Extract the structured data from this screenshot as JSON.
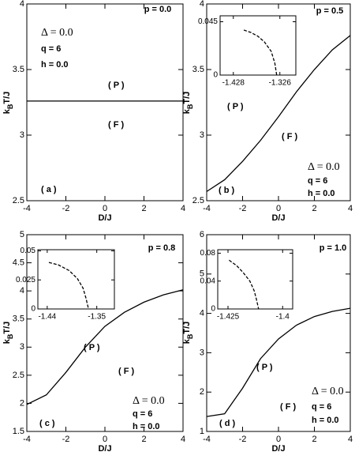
{
  "chart_data": [
    {
      "type": "line",
      "xlabel": "D/J",
      "ylabel": [
        "k",
        "B",
        "T/J"
      ],
      "xlim": [
        -4,
        4
      ],
      "xticks": [
        -4,
        -2,
        0,
        2,
        4
      ],
      "ylim": [
        2.5,
        4
      ],
      "yticks": [
        2.5,
        3,
        3.5,
        4
      ],
      "x": [
        -4,
        -3,
        -2,
        -1,
        0,
        1,
        2,
        3,
        4
      ],
      "values": [
        3.26,
        3.26,
        3.26,
        3.26,
        3.26,
        3.26,
        3.26,
        3.26,
        3.26
      ],
      "color": "#000000",
      "p_label": "p = 0.0",
      "delta_label": "Δ = 0.0",
      "q_label": "q = 6",
      "h_label": "h = 0.0",
      "phase_p": "( P )",
      "phase_f": "( F )",
      "panel_label": "( a )"
    },
    {
      "type": "line",
      "xlabel": "D/J",
      "ylabel": [
        "k",
        "B",
        "T/J"
      ],
      "xlim": [
        -4,
        4
      ],
      "xticks": [
        -4,
        -2,
        0,
        2,
        4
      ],
      "ylim": [
        2.5,
        4
      ],
      "yticks": [
        2.5,
        3,
        3.5,
        4
      ],
      "x": [
        -4,
        -3,
        -2,
        -1,
        0,
        1,
        2,
        3,
        4
      ],
      "values": [
        2.57,
        2.66,
        2.8,
        2.96,
        3.14,
        3.33,
        3.5,
        3.65,
        3.76
      ],
      "color": "#000000",
      "p_label": "p = 0.5",
      "delta_label": "Δ = 0.0",
      "q_label": "q = 6",
      "h_label": "h = 0.0",
      "phase_p": "( P )",
      "phase_f": "( F )",
      "panel_label": "( b )",
      "inset": {
        "xlim": [
          -1.457,
          -1.291
        ],
        "xticks": [
          -1.428,
          -1.326
        ],
        "ylim": [
          0,
          0.05
        ],
        "yticks": [
          0,
          0.045
        ],
        "x": [
          -1.405,
          -1.39,
          -1.375,
          -1.36,
          -1.345,
          -1.337,
          -1.333
        ],
        "values": [
          0.038,
          0.036,
          0.033,
          0.028,
          0.02,
          0.01,
          0
        ],
        "dashed": true
      }
    },
    {
      "type": "line",
      "xlabel": "D/J",
      "ylabel": [
        "k",
        "B",
        "T/J"
      ],
      "xlim": [
        -4,
        4
      ],
      "xticks": [
        -4,
        -2,
        0,
        2,
        4
      ],
      "ylim": [
        1.5,
        5
      ],
      "yticks": [
        1.5,
        2,
        2.5,
        3,
        3.5,
        4,
        4.5,
        5
      ],
      "x": [
        -4,
        -3,
        -2,
        -1,
        0,
        1,
        2,
        3,
        4
      ],
      "values": [
        1.98,
        2.15,
        2.55,
        3.0,
        3.37,
        3.62,
        3.8,
        3.93,
        4.02
      ],
      "color": "#000000",
      "p_label": "p = 0.8",
      "delta_label": "Δ = 0.0",
      "q_label": "q = 6",
      "h_label": "h = 0.0",
      "phase_p": "( P )",
      "phase_f": "( F )",
      "panel_label": "( c )",
      "inset": {
        "xlim": [
          -1.457,
          -1.318
        ],
        "xticks": [
          -1.44,
          -1.35
        ],
        "ylim": [
          0,
          0.051
        ],
        "yticks": [
          0,
          0.025,
          0.05
        ],
        "x": [
          -1.437,
          -1.42,
          -1.4,
          -1.385,
          -1.375,
          -1.37,
          -1.365
        ],
        "values": [
          0.04,
          0.038,
          0.033,
          0.026,
          0.018,
          0.01,
          0
        ],
        "dashed": true
      }
    },
    {
      "type": "line",
      "xlabel": "D/J",
      "ylabel": [
        "k",
        "B",
        "T/J"
      ],
      "xlim": [
        -4,
        4
      ],
      "xticks": [
        -4,
        -2,
        0,
        2,
        4
      ],
      "ylim": [
        1,
        6
      ],
      "yticks": [
        1,
        2,
        3,
        4,
        5,
        6
      ],
      "x": [
        -4,
        -3,
        -2,
        -1,
        0,
        1,
        2,
        3,
        4
      ],
      "values": [
        1.38,
        1.45,
        2.1,
        2.85,
        3.35,
        3.7,
        3.92,
        4.05,
        4.13
      ],
      "color": "#000000",
      "p_label": "p = 1.0",
      "delta_label": "Δ = 0.0",
      "q_label": "q = 6",
      "h_label": "h = 0.0",
      "phase_p": "( P )",
      "phase_f": "( F )",
      "panel_label": "( d )",
      "inset": {
        "xlim": [
          -1.4297,
          -1.3954
        ],
        "xticks": [
          -1.425,
          -1.4
        ],
        "ylim": [
          0,
          0.085
        ],
        "yticks": [
          0,
          0.04,
          0.08
        ],
        "x": [
          -1.4245,
          -1.421,
          -1.418,
          -1.415,
          -1.413,
          -1.412,
          -1.411
        ],
        "values": [
          0.07,
          0.062,
          0.052,
          0.04,
          0.026,
          0.014,
          0
        ],
        "dashed": true
      }
    }
  ]
}
